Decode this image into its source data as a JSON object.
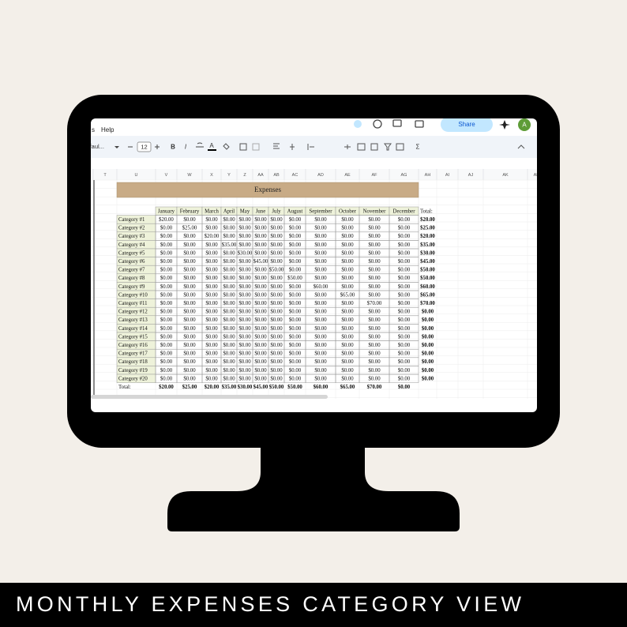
{
  "menu": [
    "s",
    "Help"
  ],
  "toolbar": {
    "font": "Defaul...",
    "font_size": "12",
    "bold": "B",
    "italic": "I",
    "text_color": "A",
    "functions": "Σ"
  },
  "share": "Share",
  "avatar": "A",
  "columns": [
    "T",
    "U",
    "V",
    "W",
    "X",
    "Y",
    "Z",
    "AA",
    "AB",
    "AC",
    "AD",
    "AE",
    "AF",
    "AG",
    "AH",
    "AI",
    "AJ",
    "AK",
    "AL"
  ],
  "sheet": {
    "title": "Expenses",
    "header": [
      "January",
      "February",
      "March",
      "April",
      "May",
      "June",
      "July",
      "August",
      "September",
      "October",
      "November",
      "December",
      "Total:"
    ],
    "rows": [
      [
        "Category #1",
        "$20.00",
        "$0.00",
        "$0.00",
        "$0.00",
        "$0.00",
        "$0.00",
        "$0.00",
        "$0.00",
        "$0.00",
        "$0.00",
        "$0.00",
        "$0.00",
        "$20.00"
      ],
      [
        "Category #2",
        "$0.00",
        "$25.00",
        "$0.00",
        "$0.00",
        "$0.00",
        "$0.00",
        "$0.00",
        "$0.00",
        "$0.00",
        "$0.00",
        "$0.00",
        "$0.00",
        "$25.00"
      ],
      [
        "Category #3",
        "$0.00",
        "$0.00",
        "$20.00",
        "$0.00",
        "$0.00",
        "$0.00",
        "$0.00",
        "$0.00",
        "$0.00",
        "$0.00",
        "$0.00",
        "$0.00",
        "$20.00"
      ],
      [
        "Category #4",
        "$0.00",
        "$0.00",
        "$0.00",
        "$35.00",
        "$0.00",
        "$0.00",
        "$0.00",
        "$0.00",
        "$0.00",
        "$0.00",
        "$0.00",
        "$0.00",
        "$35.00"
      ],
      [
        "Category #5",
        "$0.00",
        "$0.00",
        "$0.00",
        "$0.00",
        "$30.00",
        "$0.00",
        "$0.00",
        "$0.00",
        "$0.00",
        "$0.00",
        "$0.00",
        "$0.00",
        "$30.00"
      ],
      [
        "Category #6",
        "$0.00",
        "$0.00",
        "$0.00",
        "$0.00",
        "$0.00",
        "$45.00",
        "$0.00",
        "$0.00",
        "$0.00",
        "$0.00",
        "$0.00",
        "$0.00",
        "$45.00"
      ],
      [
        "Category #7",
        "$0.00",
        "$0.00",
        "$0.00",
        "$0.00",
        "$0.00",
        "$0.00",
        "$50.00",
        "$0.00",
        "$0.00",
        "$0.00",
        "$0.00",
        "$0.00",
        "$50.00"
      ],
      [
        "Category #8",
        "$0.00",
        "$0.00",
        "$0.00",
        "$0.00",
        "$0.00",
        "$0.00",
        "$0.00",
        "$50.00",
        "$0.00",
        "$0.00",
        "$0.00",
        "$0.00",
        "$50.00"
      ],
      [
        "Category #9",
        "$0.00",
        "$0.00",
        "$0.00",
        "$0.00",
        "$0.00",
        "$0.00",
        "$0.00",
        "$0.00",
        "$60.00",
        "$0.00",
        "$0.00",
        "$0.00",
        "$60.00"
      ],
      [
        "Category #10",
        "$0.00",
        "$0.00",
        "$0.00",
        "$0.00",
        "$0.00",
        "$0.00",
        "$0.00",
        "$0.00",
        "$0.00",
        "$65.00",
        "$0.00",
        "$0.00",
        "$65.00"
      ],
      [
        "Category #11",
        "$0.00",
        "$0.00",
        "$0.00",
        "$0.00",
        "$0.00",
        "$0.00",
        "$0.00",
        "$0.00",
        "$0.00",
        "$0.00",
        "$70.00",
        "$0.00",
        "$70.00"
      ],
      [
        "Category #12",
        "$0.00",
        "$0.00",
        "$0.00",
        "$0.00",
        "$0.00",
        "$0.00",
        "$0.00",
        "$0.00",
        "$0.00",
        "$0.00",
        "$0.00",
        "$0.00",
        "$0.00"
      ],
      [
        "Category #13",
        "$0.00",
        "$0.00",
        "$0.00",
        "$0.00",
        "$0.00",
        "$0.00",
        "$0.00",
        "$0.00",
        "$0.00",
        "$0.00",
        "$0.00",
        "$0.00",
        "$0.00"
      ],
      [
        "Category #14",
        "$0.00",
        "$0.00",
        "$0.00",
        "$0.00",
        "$0.00",
        "$0.00",
        "$0.00",
        "$0.00",
        "$0.00",
        "$0.00",
        "$0.00",
        "$0.00",
        "$0.00"
      ],
      [
        "Category #15",
        "$0.00",
        "$0.00",
        "$0.00",
        "$0.00",
        "$0.00",
        "$0.00",
        "$0.00",
        "$0.00",
        "$0.00",
        "$0.00",
        "$0.00",
        "$0.00",
        "$0.00"
      ],
      [
        "Category #16",
        "$0.00",
        "$0.00",
        "$0.00",
        "$0.00",
        "$0.00",
        "$0.00",
        "$0.00",
        "$0.00",
        "$0.00",
        "$0.00",
        "$0.00",
        "$0.00",
        "$0.00"
      ],
      [
        "Category #17",
        "$0.00",
        "$0.00",
        "$0.00",
        "$0.00",
        "$0.00",
        "$0.00",
        "$0.00",
        "$0.00",
        "$0.00",
        "$0.00",
        "$0.00",
        "$0.00",
        "$0.00"
      ],
      [
        "Category #18",
        "$0.00",
        "$0.00",
        "$0.00",
        "$0.00",
        "$0.00",
        "$0.00",
        "$0.00",
        "$0.00",
        "$0.00",
        "$0.00",
        "$0.00",
        "$0.00",
        "$0.00"
      ],
      [
        "Category #19",
        "$0.00",
        "$0.00",
        "$0.00",
        "$0.00",
        "$0.00",
        "$0.00",
        "$0.00",
        "$0.00",
        "$0.00",
        "$0.00",
        "$0.00",
        "$0.00",
        "$0.00"
      ],
      [
        "Category #20",
        "$0.00",
        "$0.00",
        "$0.00",
        "$0.00",
        "$0.00",
        "$0.00",
        "$0.00",
        "$0.00",
        "$0.00",
        "$0.00",
        "$0.00",
        "$0.00",
        "$0.00"
      ]
    ],
    "total": [
      "Total:",
      "$20.00",
      "$25.00",
      "$20.00",
      "$35.00",
      "$30.00",
      "$45.00",
      "$50.00",
      "$50.00",
      "$60.00",
      "$65.00",
      "$70.00",
      "$0.00"
    ]
  },
  "caption": "MONTHLY EXPENSES CATEGORY VIEW"
}
